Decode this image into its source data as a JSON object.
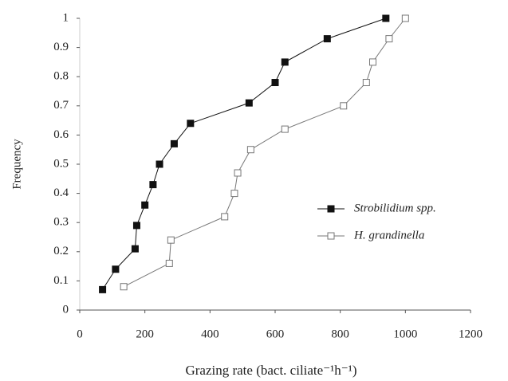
{
  "chart_data": {
    "type": "line",
    "x_label": "Grazing rate (bact. ciliate⁻¹h⁻¹)",
    "y_label": "Frequency",
    "xlim": [
      0,
      1200
    ],
    "xticks": [
      0,
      200,
      400,
      600,
      800,
      1000,
      1200
    ],
    "ylim": [
      0,
      1
    ],
    "yticks": [
      0,
      0.1,
      0.2,
      0.3,
      0.4,
      0.5,
      0.6,
      0.7,
      0.8,
      0.9,
      1
    ],
    "legend": "right",
    "series": [
      {
        "name": "Strobilidium spp.",
        "color": "#111111",
        "marker": "filled",
        "x": [
          70,
          110,
          170,
          175,
          200,
          225,
          245,
          290,
          340,
          520,
          600,
          630,
          760,
          940
        ],
        "values": [
          0.07,
          0.14,
          0.21,
          0.29,
          0.36,
          0.43,
          0.5,
          0.57,
          0.64,
          0.71,
          0.78,
          0.85,
          0.93,
          1.0
        ]
      },
      {
        "name": "H. grandinella",
        "color": "#777777",
        "marker": "open",
        "x": [
          135,
          275,
          280,
          445,
          475,
          485,
          525,
          630,
          810,
          880,
          900,
          950,
          1000
        ],
        "values": [
          0.08,
          0.16,
          0.24,
          0.32,
          0.4,
          0.47,
          0.55,
          0.62,
          0.7,
          0.78,
          0.85,
          0.93,
          1.0
        ]
      }
    ]
  }
}
